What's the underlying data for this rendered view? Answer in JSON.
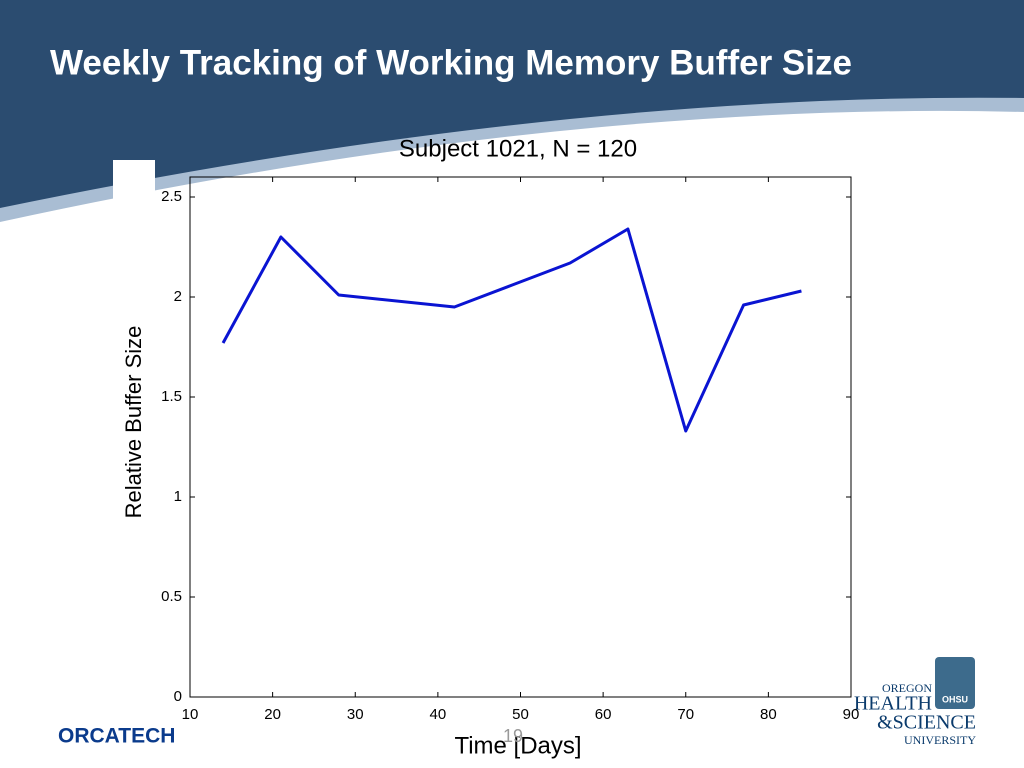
{
  "slide": {
    "title": "Weekly Tracking of Working Memory Buffer Size",
    "footer_left": "ORCATECH",
    "page_number": "19",
    "logo": [
      "OREGON",
      "HEALTH",
      "&SCIENCE",
      "UNIVERSITY"
    ],
    "logo_badge": "OHSU"
  },
  "chart_data": {
    "type": "line",
    "title": "Subject 1021, N = 120",
    "x_label": "Time [Days]",
    "y_label": "Relative Buffer Size",
    "x": [
      14,
      21,
      28,
      42,
      49,
      56,
      63,
      70,
      77,
      84
    ],
    "series": [
      {
        "name": "Subject 1021",
        "color": "#0a14d2",
        "values": [
          1.77,
          2.3,
          2.01,
          1.95,
          2.06,
          2.17,
          2.34,
          1.33,
          1.96,
          2.03
        ]
      }
    ],
    "xlim": [
      10,
      90
    ],
    "xticks": [
      10,
      20,
      30,
      40,
      50,
      60,
      70,
      80,
      90
    ],
    "ylim": [
      0,
      2.6
    ],
    "yticks": [
      0,
      0.5,
      1,
      1.5,
      2,
      2.5
    ],
    "grid": false
  }
}
